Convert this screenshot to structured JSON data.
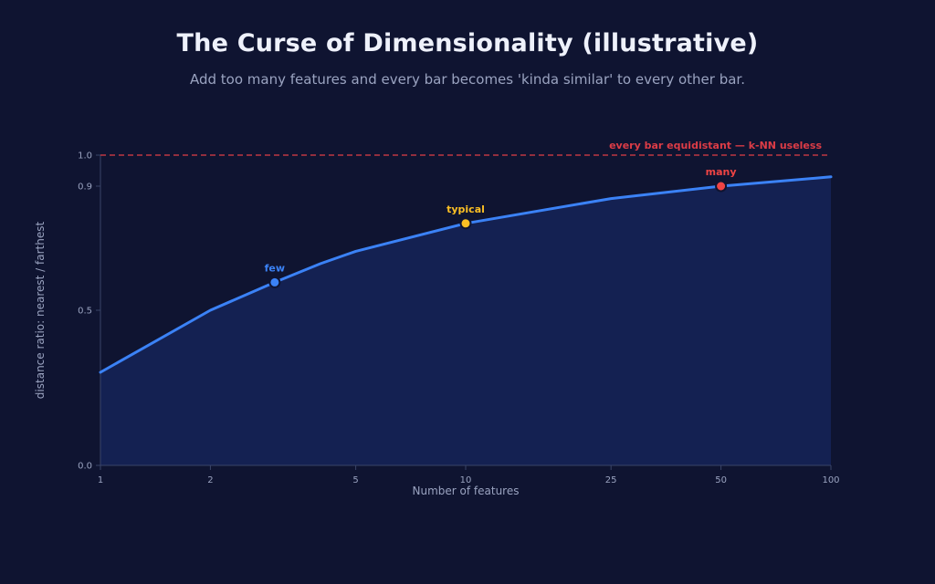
{
  "chart_data": {
    "type": "area",
    "title": "The Curse of Dimensionality (illustrative)",
    "subtitle": "Add too many features and every bar becomes 'kinda similar' to every other bar.",
    "xlabel": "Number of features",
    "ylabel": "distance ratio: nearest / farthest",
    "x_scale": "log",
    "xlim": [
      1,
      100
    ],
    "ylim": [
      0,
      1
    ],
    "x_ticks": [
      1,
      2,
      5,
      10,
      25,
      50,
      100
    ],
    "y_ticks": [
      0.0,
      0.5,
      0.9,
      1.0
    ],
    "y_tick_labels": [
      "0.0",
      "0.5",
      "0.9",
      "1.0"
    ],
    "grid": false,
    "series": [
      {
        "x": [
          1,
          2,
          3,
          4,
          5,
          10,
          25,
          50,
          100
        ],
        "y": [
          0.3,
          0.5,
          0.59,
          0.65,
          0.69,
          0.78,
          0.86,
          0.9,
          0.93
        ]
      }
    ],
    "highlights": [
      {
        "label": "few",
        "x": 3,
        "y": 0.59,
        "color": "#3b82f6"
      },
      {
        "label": "typical",
        "x": 10,
        "y": 0.78,
        "color": "#fbbf24"
      },
      {
        "label": "many",
        "x": 50,
        "y": 0.9,
        "color": "#ef4444"
      }
    ],
    "reference_line": {
      "y": 1.0,
      "label": "every bar equidistant — k-NN useless",
      "color": "#dc3c46"
    },
    "colors": {
      "line": "#3b82f6",
      "area": "#142152",
      "axis": "#3a4468"
    }
  }
}
